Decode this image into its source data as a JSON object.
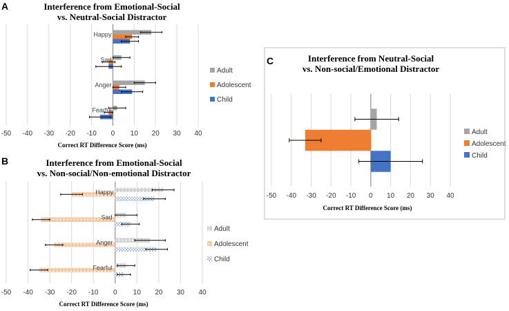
{
  "chart_data": [
    {
      "id": "A",
      "panel_letter": "A",
      "type": "bar",
      "orientation": "horizontal",
      "title_lines": [
        "Interference from Emotional-Social",
        "vs. Neutral-Social Distractor"
      ],
      "xlabel": "Correct RT Difference Score (ms)",
      "xlim": [
        -50,
        40
      ],
      "xticks": [
        -50,
        -40,
        -30,
        -20,
        -10,
        0,
        10,
        20,
        30,
        40
      ],
      "grid": true,
      "legend_position": "right",
      "categories": [
        "Happy",
        "Sad",
        "Anger",
        "Fearful"
      ],
      "series": [
        {
          "name": "Adult",
          "color": "#A5A5A5",
          "pattern": "solid",
          "values": [
            18,
            4,
            15,
            2
          ],
          "errors": [
            5,
            4,
            5,
            4
          ]
        },
        {
          "name": "Adolescent",
          "color": "#ED7D31",
          "pattern": "solid",
          "values": [
            9,
            -2,
            3,
            -2
          ],
          "errors": [
            3,
            3,
            3,
            2
          ]
        },
        {
          "name": "Child",
          "color": "#4472C4",
          "pattern": "solid",
          "values": [
            8,
            -2,
            9,
            -6
          ],
          "errors": [
            4,
            6,
            5,
            5
          ]
        }
      ]
    },
    {
      "id": "B",
      "panel_letter": "B",
      "type": "bar",
      "orientation": "horizontal",
      "title_lines": [
        "Interference from Emotional-Social",
        "vs. Non-social/Non-emotional Distractor"
      ],
      "xlabel": "Correct RT Difference Score (ms)",
      "xlim": [
        -50,
        40
      ],
      "xticks": [
        -50,
        -40,
        -30,
        -20,
        -10,
        0,
        10,
        20,
        30,
        40
      ],
      "grid": true,
      "legend_position": "right",
      "categories": [
        "Happy",
        "Sad",
        "Anger",
        "Fearful"
      ],
      "series": [
        {
          "name": "Adult",
          "color": "#D2D2D2",
          "pattern": "dots",
          "values": [
            22,
            5,
            16,
            5
          ],
          "errors": [
            5,
            5,
            7,
            4
          ]
        },
        {
          "name": "Adolescent",
          "color": "#F2C9A4",
          "pattern": "dots",
          "values": [
            -20,
            -34,
            -28,
            -35
          ],
          "errors": [
            5,
            4,
            4,
            4
          ]
        },
        {
          "name": "Child",
          "color": "#A9BEDD",
          "pattern": "checker",
          "values": [
            18,
            7,
            19,
            4
          ],
          "errors": [
            5,
            4,
            5,
            3
          ]
        }
      ]
    },
    {
      "id": "C",
      "panel_letter": "C",
      "type": "bar",
      "orientation": "horizontal",
      "title_lines": [
        "Interference from Neutral-Social",
        "vs. Non-social/Emotional Distractor"
      ],
      "xlabel": "Correct RT Difference Score (ms)",
      "xlim": [
        -50,
        40
      ],
      "xticks": [
        -50,
        -40,
        -30,
        -20,
        -10,
        0,
        10,
        20,
        30,
        40
      ],
      "grid": true,
      "legend_position": "right",
      "categories": [
        ""
      ],
      "series": [
        {
          "name": "Adult",
          "color": "#A5A5A5",
          "pattern": "solid",
          "values": [
            3
          ],
          "errors": [
            11
          ]
        },
        {
          "name": "Adolescent",
          "color": "#ED7D31",
          "pattern": "solid",
          "values": [
            -33
          ],
          "errors": [
            8
          ]
        },
        {
          "name": "Child",
          "color": "#4472C4",
          "pattern": "solid",
          "values": [
            10
          ],
          "errors": [
            16
          ]
        }
      ]
    }
  ]
}
